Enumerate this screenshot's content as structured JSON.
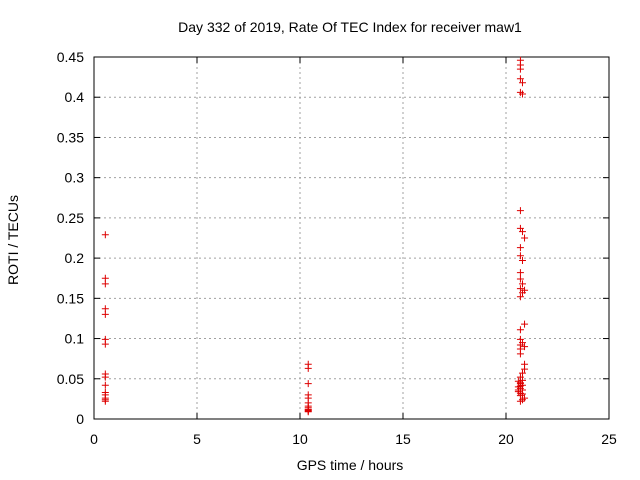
{
  "chart_data": {
    "type": "scatter",
    "title": "Day 332 of 2019, Rate Of TEC Index for receiver maw1",
    "xlabel": "GPS time / hours",
    "ylabel": "ROTI / TECUs",
    "xlim": [
      0,
      25
    ],
    "ylim": [
      0,
      0.45
    ],
    "xticks": [
      0,
      5,
      10,
      15,
      20,
      25
    ],
    "yticks": [
      0,
      0.05,
      0.1,
      0.15,
      0.2,
      0.25,
      0.3,
      0.35,
      0.4,
      0.45
    ],
    "xtick_labels": [
      "0",
      "5",
      "10",
      "15",
      "20",
      "25"
    ],
    "ytick_labels": [
      "0",
      "0.05",
      "0.1",
      "0.15",
      "0.2",
      "0.25",
      "0.3",
      "0.35",
      "0.4",
      "0.45"
    ],
    "grid": true,
    "marker": "plus",
    "color": "#dd0000",
    "points": [
      [
        0.55,
        0.229
      ],
      [
        0.55,
        0.175
      ],
      [
        0.55,
        0.168
      ],
      [
        0.55,
        0.137
      ],
      [
        0.55,
        0.13
      ],
      [
        0.55,
        0.099
      ],
      [
        0.55,
        0.093
      ],
      [
        0.55,
        0.056
      ],
      [
        0.55,
        0.052
      ],
      [
        0.55,
        0.042
      ],
      [
        0.55,
        0.033
      ],
      [
        0.55,
        0.03
      ],
      [
        0.55,
        0.026
      ],
      [
        0.55,
        0.024
      ],
      [
        0.55,
        0.022
      ],
      [
        10.4,
        0.068
      ],
      [
        10.4,
        0.063
      ],
      [
        10.4,
        0.044
      ],
      [
        10.4,
        0.03
      ],
      [
        10.4,
        0.026
      ],
      [
        10.4,
        0.02
      ],
      [
        10.4,
        0.016
      ],
      [
        10.4,
        0.014
      ],
      [
        10.4,
        0.012
      ],
      [
        10.4,
        0.011
      ],
      [
        10.4,
        0.01
      ],
      [
        10.4,
        0.009
      ],
      [
        20.7,
        0.446
      ],
      [
        20.7,
        0.44
      ],
      [
        20.7,
        0.435
      ],
      [
        20.7,
        0.423
      ],
      [
        20.8,
        0.418
      ],
      [
        20.7,
        0.406
      ],
      [
        20.8,
        0.404
      ],
      [
        20.7,
        0.259
      ],
      [
        20.7,
        0.237
      ],
      [
        20.8,
        0.233
      ],
      [
        20.9,
        0.225
      ],
      [
        20.7,
        0.213
      ],
      [
        20.7,
        0.203
      ],
      [
        20.8,
        0.197
      ],
      [
        20.7,
        0.182
      ],
      [
        20.7,
        0.174
      ],
      [
        20.8,
        0.168
      ],
      [
        20.7,
        0.162
      ],
      [
        20.9,
        0.16
      ],
      [
        20.8,
        0.157
      ],
      [
        20.7,
        0.152
      ],
      [
        20.9,
        0.118
      ],
      [
        20.7,
        0.111
      ],
      [
        20.7,
        0.099
      ],
      [
        20.8,
        0.095
      ],
      [
        20.7,
        0.092
      ],
      [
        20.9,
        0.09
      ],
      [
        20.7,
        0.087
      ],
      [
        20.7,
        0.081
      ],
      [
        20.9,
        0.068
      ],
      [
        20.9,
        0.062
      ],
      [
        20.8,
        0.057
      ],
      [
        20.7,
        0.052
      ],
      [
        20.6,
        0.047
      ],
      [
        20.7,
        0.044
      ],
      [
        20.8,
        0.042
      ],
      [
        20.6,
        0.04
      ],
      [
        20.7,
        0.038
      ],
      [
        20.8,
        0.036
      ],
      [
        20.6,
        0.034
      ],
      [
        20.7,
        0.032
      ],
      [
        20.8,
        0.031
      ],
      [
        20.7,
        0.029
      ],
      [
        20.9,
        0.026
      ],
      [
        20.8,
        0.024
      ],
      [
        20.7,
        0.022
      ],
      [
        20.7,
        0.045
      ],
      [
        20.8,
        0.048
      ],
      [
        20.6,
        0.036
      ],
      [
        20.7,
        0.041
      ]
    ]
  }
}
